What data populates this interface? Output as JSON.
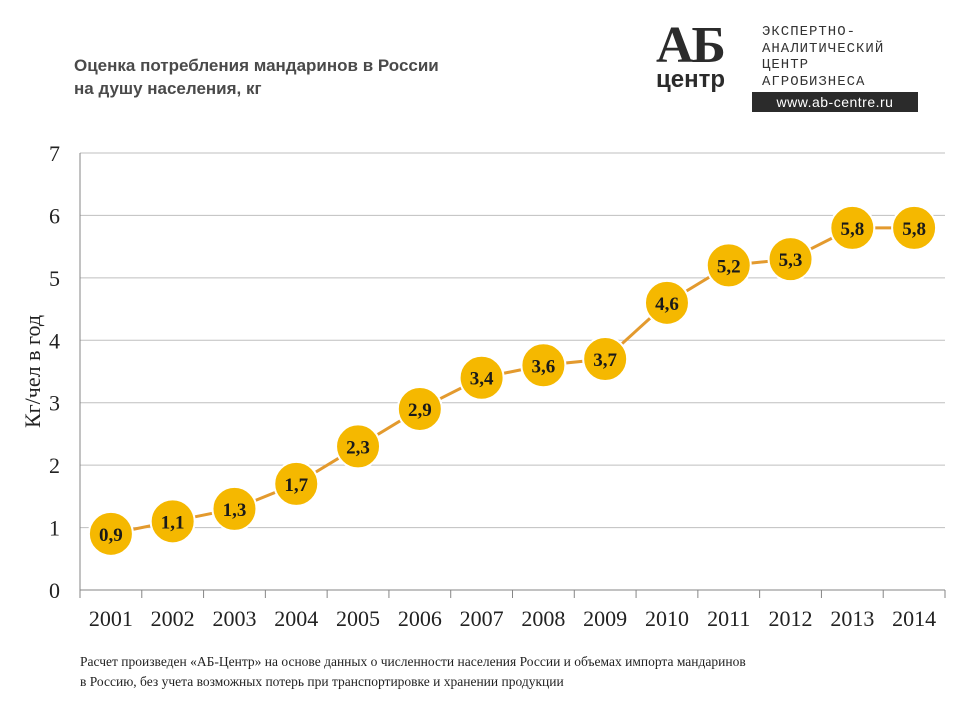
{
  "title_lines": [
    "Оценка потребления мандаринов в России",
    "на душу населения, кг"
  ],
  "logo": {
    "mark_top": "АБ",
    "mark_bottom": "центр",
    "lines": [
      "ЭКСПЕРТНО-",
      "АНАЛИТИЧЕСКИЙ",
      "ЦЕНТР",
      "АГРОБИЗНЕСА"
    ],
    "url": "www.ab-centre.ru"
  },
  "footnote_lines": [
    "Расчет произведен «АБ-Центр» на основе данных о численности населения России и объемах импорта мандаринов",
    "в Россию, без учета возможных потерь при транспортировке и хранении продукции"
  ],
  "chart_data": {
    "type": "line",
    "title": "Оценка потребления мандаринов в России на душу населения, кг",
    "xlabel": "",
    "ylabel": "Кг/чел в год",
    "categories": [
      "2001",
      "2002",
      "2003",
      "2004",
      "2005",
      "2006",
      "2007",
      "2008",
      "2009",
      "2010",
      "2011",
      "2012",
      "2013",
      "2014"
    ],
    "values": [
      0.9,
      1.1,
      1.3,
      1.7,
      2.3,
      2.9,
      3.4,
      3.6,
      3.7,
      4.6,
      5.2,
      5.3,
      5.8,
      5.8
    ],
    "data_labels": [
      "0,9",
      "1,1",
      "1,3",
      "1,7",
      "2,3",
      "2,9",
      "3,4",
      "3,6",
      "3,7",
      "4,6",
      "5,2",
      "5,3",
      "5,8",
      "5,8"
    ],
    "ylim": [
      0,
      7
    ],
    "yticks": [
      "0",
      "1",
      "2",
      "3",
      "4",
      "5",
      "6",
      "7"
    ],
    "grid": true,
    "legend": "none",
    "colors": {
      "line": "#e39a2e",
      "marker_fill": "#f5b800",
      "marker_stroke": "#ffffff",
      "grid": "#bfbfbf",
      "axis": "#868686"
    }
  }
}
